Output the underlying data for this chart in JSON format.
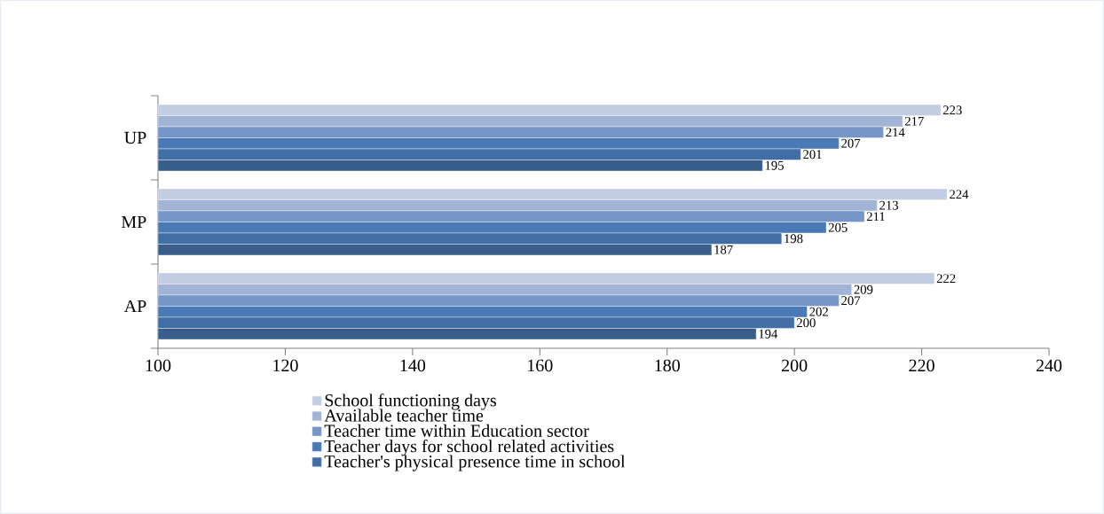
{
  "chart_data": {
    "type": "bar",
    "orientation": "horizontal",
    "categories": [
      "UP",
      "MP",
      "AP"
    ],
    "series": [
      {
        "name": "School functioning days",
        "color": "#c3cde3",
        "values": [
          223,
          224,
          222
        ]
      },
      {
        "name": "Available teacher time",
        "color": "#a2b4d6",
        "values": [
          217,
          213,
          209
        ]
      },
      {
        "name": "Teacher time within Education sector",
        "color": "#7596c7",
        "values": [
          214,
          211,
          207
        ]
      },
      {
        "name": "Teacher days for school related activities",
        "color": "#4a7ab5",
        "values": [
          207,
          205,
          202
        ]
      },
      {
        "name": "Teacher's physical presence time in school",
        "color": "#416ea4",
        "values": [
          201,
          198,
          200
        ]
      },
      {
        "color": "#3a5e8c",
        "values": [
          195,
          187,
          194
        ]
      }
    ],
    "xlim": [
      100,
      240
    ],
    "xticks": [
      100,
      120,
      140,
      160,
      180,
      200,
      220,
      240
    ],
    "data_labels": true,
    "legend": "bottom",
    "grid": false
  }
}
